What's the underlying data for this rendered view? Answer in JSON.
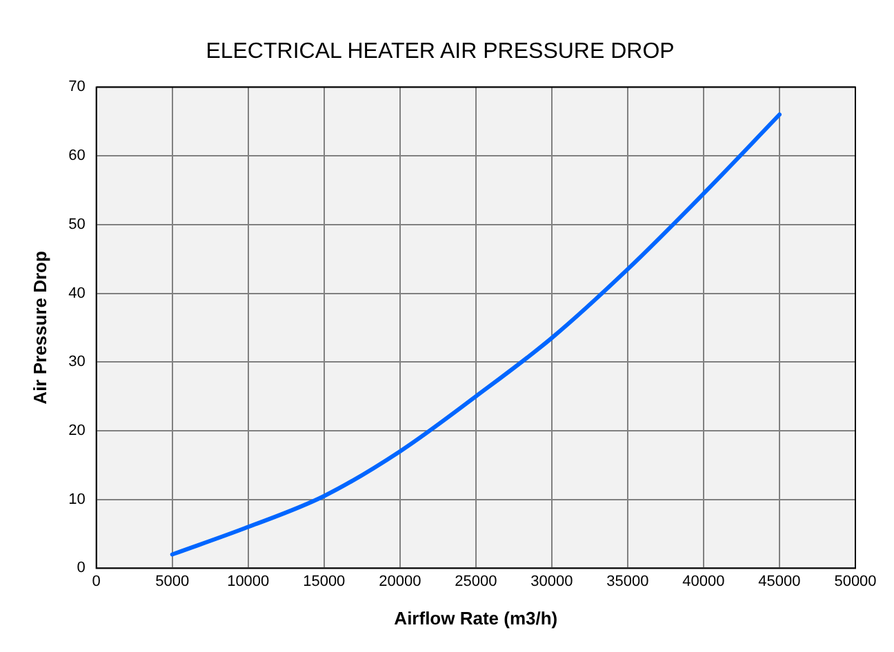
{
  "chart_data": {
    "type": "line",
    "title": "ELECTRICAL HEATER AIR PRESSURE DROP",
    "xlabel": "Airflow Rate (m3/h)",
    "ylabel": "Air Pressure Drop",
    "x": [
      5000,
      10000,
      15000,
      20000,
      25000,
      30000,
      35000,
      40000,
      45000
    ],
    "series": [
      {
        "color": "#0066ff",
        "values": [
          2,
          6,
          10.5,
          17,
          25,
          33.5,
          43.5,
          54.5,
          66
        ]
      }
    ],
    "xlim": [
      0,
      50000
    ],
    "xticks": [
      0,
      5000,
      10000,
      15000,
      20000,
      25000,
      30000,
      35000,
      40000,
      45000,
      50000
    ],
    "ylim": [
      0,
      70
    ],
    "yticks": [
      0,
      10,
      20,
      30,
      40,
      50,
      60,
      70
    ],
    "grid": true,
    "legend": false,
    "marker": "none",
    "line_style": "solid"
  }
}
